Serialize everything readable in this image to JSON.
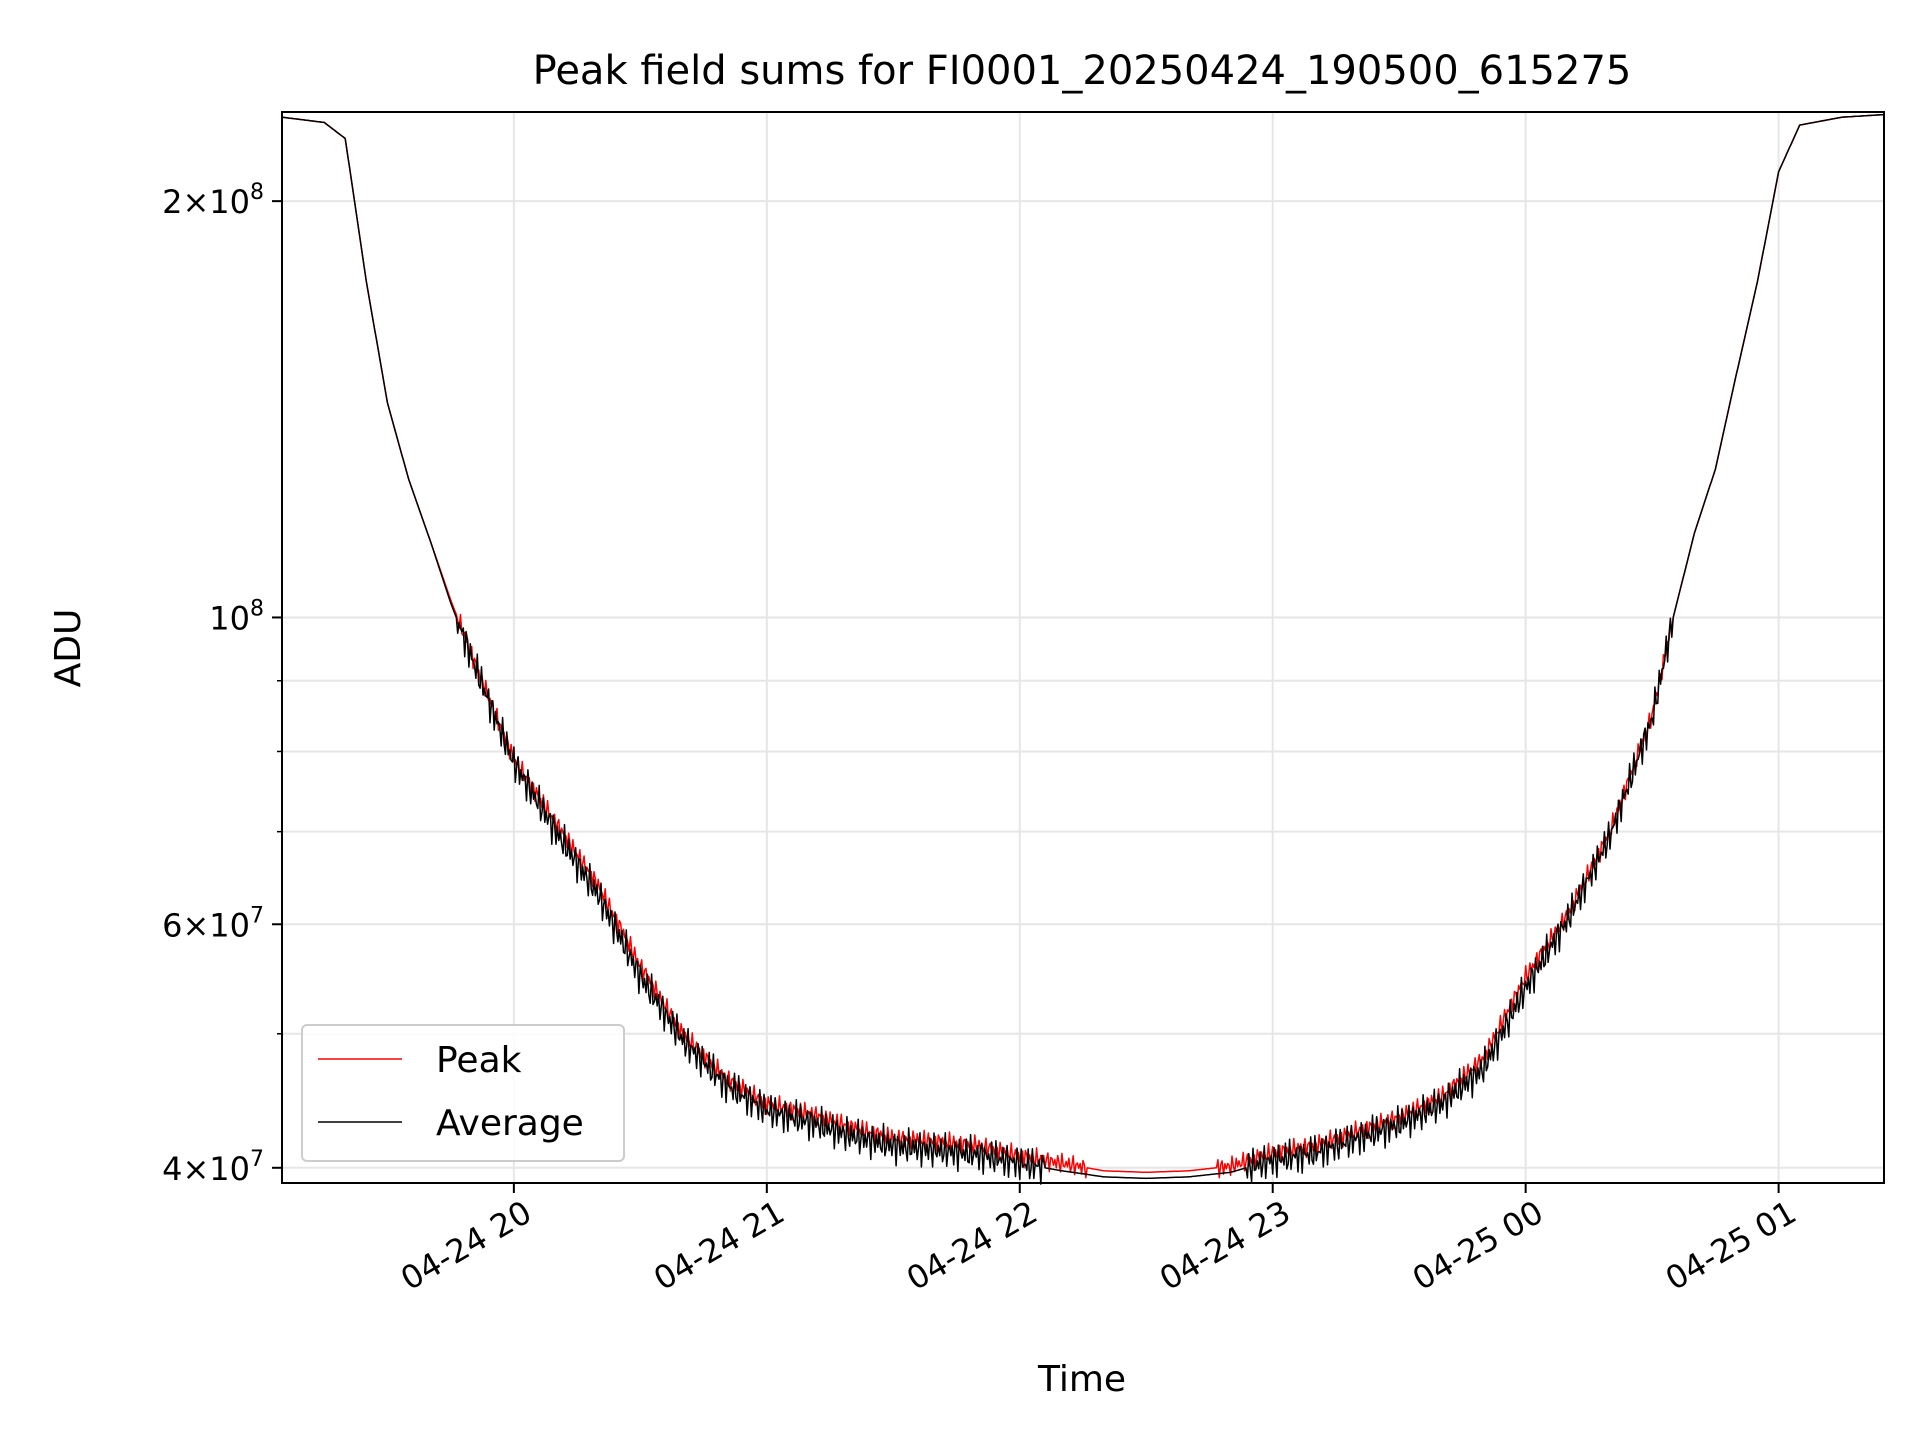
{
  "chart_data": {
    "type": "line",
    "title": "Peak field sums for FI0001_20250424_190500_615275",
    "xlabel": "Time",
    "ylabel": "ADU",
    "y_scale": "log",
    "ylim": [
      39000000,
      232000000
    ],
    "xlim": [
      "2025-04-24 19:05",
      "2025-04-25 01:25"
    ],
    "x_ticks": [
      {
        "label": "04-24 20",
        "t": "2025-04-24 20:00"
      },
      {
        "label": "04-24 21",
        "t": "2025-04-24 21:00"
      },
      {
        "label": "04-24 22",
        "t": "2025-04-24 22:00"
      },
      {
        "label": "04-24 23",
        "t": "2025-04-24 23:00"
      },
      {
        "label": "04-25 00",
        "t": "2025-04-25 00:00"
      },
      {
        "label": "04-25 01",
        "t": "2025-04-25 01:00"
      }
    ],
    "y_ticks": [
      {
        "value": 200000000,
        "mant": "2",
        "exp": "8"
      },
      {
        "value": 100000000,
        "mant": "",
        "exp": "8"
      },
      {
        "value": 60000000,
        "mant": "6",
        "exp": "7"
      },
      {
        "value": 40000000,
        "mant": "4",
        "exp": "7"
      }
    ],
    "y_minor_ticks": [
      50000000,
      70000000,
      80000000,
      90000000,
      300000000
    ],
    "grid": true,
    "legend": {
      "placement": "lower-left"
    },
    "series": [
      {
        "name": "Peak",
        "color": "#ff0000",
        "x": [
          "2025-04-24 19:05",
          "2025-04-24 19:15",
          "2025-04-24 19:20",
          "2025-04-24 19:25",
          "2025-04-24 19:30",
          "2025-04-24 19:35",
          "2025-04-24 19:40",
          "2025-04-24 19:45",
          "2025-04-24 19:50",
          "2025-04-24 19:55",
          "2025-04-24 20:00",
          "2025-04-24 20:10",
          "2025-04-24 20:20",
          "2025-04-24 20:30",
          "2025-04-24 20:40",
          "2025-04-24 20:50",
          "2025-04-24 21:00",
          "2025-04-24 21:10",
          "2025-04-24 21:20",
          "2025-04-24 21:30",
          "2025-04-24 21:40",
          "2025-04-24 21:50",
          "2025-04-24 22:00",
          "2025-04-24 22:10",
          "2025-04-24 22:20",
          "2025-04-24 22:30",
          "2025-04-24 22:40",
          "2025-04-24 22:50",
          "2025-04-24 23:00",
          "2025-04-24 23:10",
          "2025-04-24 23:20",
          "2025-04-24 23:30",
          "2025-04-24 23:40",
          "2025-04-24 23:50",
          "2025-04-25 00:00",
          "2025-04-25 00:10",
          "2025-04-25 00:20",
          "2025-04-25 00:30",
          "2025-04-25 00:35",
          "2025-04-25 00:40",
          "2025-04-25 00:45",
          "2025-04-25 00:50",
          "2025-04-25 00:55",
          "2025-04-25 01:00",
          "2025-04-25 01:05",
          "2025-04-25 01:15",
          "2025-04-25 01:25"
        ],
        "values": [
          230000000,
          228000000,
          222000000,
          175000000,
          143000000,
          126000000,
          114000000,
          103000000,
          94000000,
          86000000,
          79000000,
          71000000,
          64000000,
          56000000,
          50000000,
          46500000,
          44500000,
          43800000,
          42800000,
          42000000,
          41800000,
          41500000,
          40800000,
          40300000,
          39800000,
          39700000,
          39800000,
          40100000,
          41000000,
          41500000,
          42500000,
          43500000,
          45000000,
          48000000,
          55000000,
          61000000,
          70000000,
          85000000,
          100000000,
          115000000,
          128000000,
          150000000,
          175000000,
          210000000,
          227000000,
          230000000,
          231000000
        ]
      },
      {
        "name": "Average",
        "color": "#000000",
        "x": [
          "2025-04-24 19:05",
          "2025-04-24 19:15",
          "2025-04-24 19:20",
          "2025-04-24 19:25",
          "2025-04-24 19:30",
          "2025-04-24 19:35",
          "2025-04-24 19:40",
          "2025-04-24 19:45",
          "2025-04-24 19:50",
          "2025-04-24 19:55",
          "2025-04-24 20:00",
          "2025-04-24 20:10",
          "2025-04-24 20:20",
          "2025-04-24 20:30",
          "2025-04-24 20:40",
          "2025-04-24 20:50",
          "2025-04-24 21:00",
          "2025-04-24 21:10",
          "2025-04-24 21:20",
          "2025-04-24 21:30",
          "2025-04-24 21:40",
          "2025-04-24 21:50",
          "2025-04-24 22:00",
          "2025-04-24 22:10",
          "2025-04-24 22:20",
          "2025-04-24 22:30",
          "2025-04-24 22:40",
          "2025-04-24 22:50",
          "2025-04-24 23:00",
          "2025-04-24 23:10",
          "2025-04-24 23:20",
          "2025-04-24 23:30",
          "2025-04-24 23:40",
          "2025-04-24 23:50",
          "2025-04-25 00:00",
          "2025-04-25 00:10",
          "2025-04-25 00:20",
          "2025-04-25 00:30",
          "2025-04-25 00:35",
          "2025-04-25 00:40",
          "2025-04-25 00:45",
          "2025-04-25 00:50",
          "2025-04-25 00:55",
          "2025-04-25 01:00",
          "2025-04-25 01:05",
          "2025-04-25 01:15",
          "2025-04-25 01:25"
        ],
        "values": [
          230000000,
          228000000,
          222000000,
          175000000,
          143000000,
          126000000,
          114000000,
          102500000,
          93500000,
          85500000,
          78500000,
          70000000,
          63000000,
          55000000,
          49500000,
          46000000,
          44000000,
          43200000,
          42200000,
          41500000,
          41200000,
          40900000,
          40300000,
          39800000,
          39400000,
          39300000,
          39400000,
          39700000,
          40500000,
          41000000,
          42000000,
          43000000,
          44500000,
          47200000,
          54000000,
          60500000,
          69500000,
          84500000,
          100000000,
          115000000,
          128000000,
          150000000,
          175000000,
          210000000,
          227000000,
          230000000,
          231000000
        ]
      }
    ]
  }
}
